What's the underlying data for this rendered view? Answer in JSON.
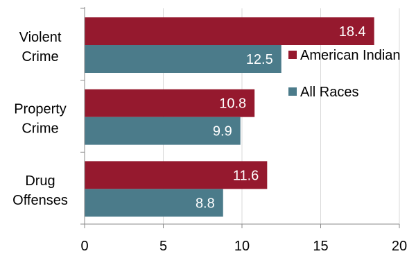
{
  "chart_data": {
    "type": "bar",
    "orientation": "horizontal",
    "categories": [
      [
        "Violent",
        "Crime"
      ],
      [
        "Property",
        "Crime"
      ],
      [
        "Drug",
        "Offenses"
      ]
    ],
    "series": [
      {
        "name": "American Indian",
        "color": "#95192e",
        "values": [
          18.4,
          10.8,
          11.6
        ],
        "labels": [
          "18.4",
          "10.8",
          "11.6"
        ]
      },
      {
        "name": "All Races",
        "color": "#4b7b8a",
        "values": [
          12.5,
          9.9,
          8.8
        ],
        "labels": [
          "12.5",
          "9.9",
          "8.8"
        ]
      }
    ],
    "xlim": [
      0,
      20
    ],
    "xticks": [
      0,
      5,
      10,
      15,
      20
    ],
    "xtick_labels": [
      "0",
      "5",
      "10",
      "15",
      "20"
    ],
    "grid": true,
    "legend_position": "right",
    "title": "",
    "xlabel": "",
    "ylabel": ""
  }
}
